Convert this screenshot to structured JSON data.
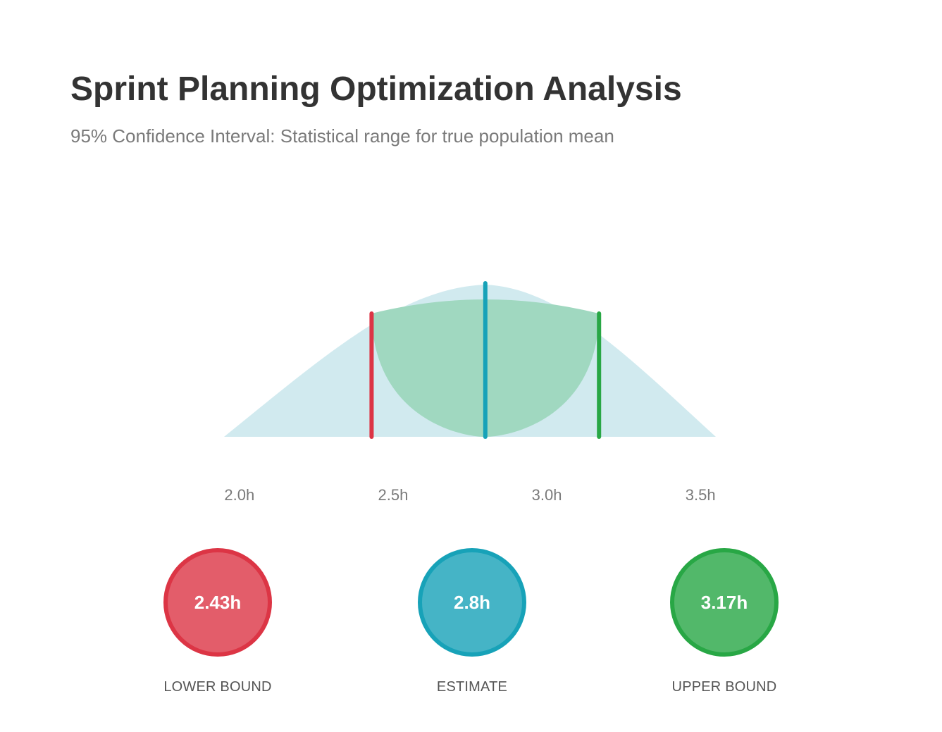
{
  "title": "Sprint Planning Optimization Analysis",
  "subtitle": "95% Confidence Interval: Statistical range for true population mean",
  "colors": {
    "lower": "#dc3545",
    "estimate": "#17a2b8",
    "upper": "#28a745",
    "distribution_fill": "#d1eaef",
    "interval_fill": "#a0d8c0"
  },
  "chart_data": {
    "type": "area",
    "x_ticks": [
      "2.0h",
      "2.5h",
      "3.0h",
      "3.5h"
    ],
    "x_tick_values": [
      2.0,
      2.5,
      3.0,
      3.5
    ],
    "xlim": [
      1.95,
      3.55
    ],
    "distribution_range": [
      1.95,
      3.55
    ],
    "lower": 2.43,
    "estimate": 2.8,
    "upper": 3.17,
    "confidence_level": "95%",
    "grid": false
  },
  "stats": [
    {
      "value": "2.43h",
      "label": "LOWER BOUND"
    },
    {
      "value": "2.8h",
      "label": "ESTIMATE"
    },
    {
      "value": "3.17h",
      "label": "UPPER BOUND"
    }
  ]
}
